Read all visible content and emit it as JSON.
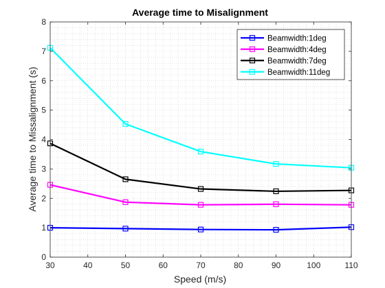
{
  "chart_data": {
    "type": "line",
    "title": "Average time to Misalignment",
    "xlabel": "Speed (m/s)",
    "ylabel": "Average time to Missalignment (s)",
    "xlim": [
      30,
      110
    ],
    "ylim": [
      0,
      8
    ],
    "xticks": [
      30,
      40,
      50,
      60,
      70,
      80,
      90,
      100,
      110
    ],
    "yticks": [
      0,
      1,
      2,
      3,
      4,
      5,
      6,
      7,
      8
    ],
    "grid": "minor-dotted",
    "legend_position": "top-right",
    "x": [
      30,
      50,
      70,
      90,
      110
    ],
    "series": [
      {
        "name": "Beamwidth:1deg",
        "color": "#0000ff",
        "values": [
          1.0,
          0.97,
          0.94,
          0.93,
          1.02
        ]
      },
      {
        "name": "Beamwidth:4deg",
        "color": "#ff00ff",
        "values": [
          2.46,
          1.87,
          1.78,
          1.8,
          1.78
        ]
      },
      {
        "name": "Beamwidth:7deg",
        "color": "#000000",
        "values": [
          3.87,
          2.65,
          2.32,
          2.24,
          2.27
        ]
      },
      {
        "name": "Beamwidth:11deg",
        "color": "#00ffff",
        "values": [
          7.12,
          4.53,
          3.59,
          3.17,
          3.04
        ]
      }
    ]
  }
}
